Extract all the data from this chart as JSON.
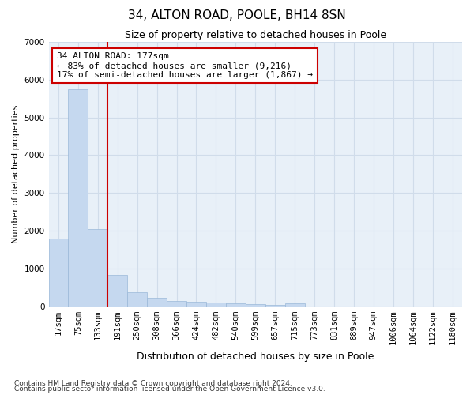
{
  "title": "34, ALTON ROAD, POOLE, BH14 8SN",
  "subtitle": "Size of property relative to detached houses in Poole",
  "xlabel": "Distribution of detached houses by size in Poole",
  "ylabel": "Number of detached properties",
  "bin_labels": [
    "17sqm",
    "75sqm",
    "133sqm",
    "191sqm",
    "250sqm",
    "308sqm",
    "366sqm",
    "424sqm",
    "482sqm",
    "540sqm",
    "599sqm",
    "657sqm",
    "715sqm",
    "773sqm",
    "831sqm",
    "889sqm",
    "947sqm",
    "1006sqm",
    "1064sqm",
    "1122sqm",
    "1180sqm"
  ],
  "bar_values": [
    1800,
    5750,
    2050,
    820,
    370,
    230,
    135,
    110,
    95,
    80,
    50,
    30,
    75,
    0,
    0,
    0,
    0,
    0,
    0,
    0,
    0
  ],
  "bar_color": "#c5d8ef",
  "bar_edge_color": "#9ab8d8",
  "grid_color": "#d0dcea",
  "background_color": "#e8f0f8",
  "vline_color": "#cc0000",
  "vline_x_index": 3,
  "annotation_text": "34 ALTON ROAD: 177sqm\n← 83% of detached houses are smaller (9,216)\n17% of semi-detached houses are larger (1,867) →",
  "annotation_box_facecolor": "#ffffff",
  "annotation_box_edgecolor": "#cc0000",
  "ylim_max": 7000,
  "yticks": [
    0,
    1000,
    2000,
    3000,
    4000,
    5000,
    6000,
    7000
  ],
  "title_fontsize": 11,
  "subtitle_fontsize": 9,
  "ylabel_fontsize": 8,
  "xlabel_fontsize": 9,
  "tick_fontsize": 7.5,
  "footnote1": "Contains HM Land Registry data © Crown copyright and database right 2024.",
  "footnote2": "Contains public sector information licensed under the Open Government Licence v3.0."
}
